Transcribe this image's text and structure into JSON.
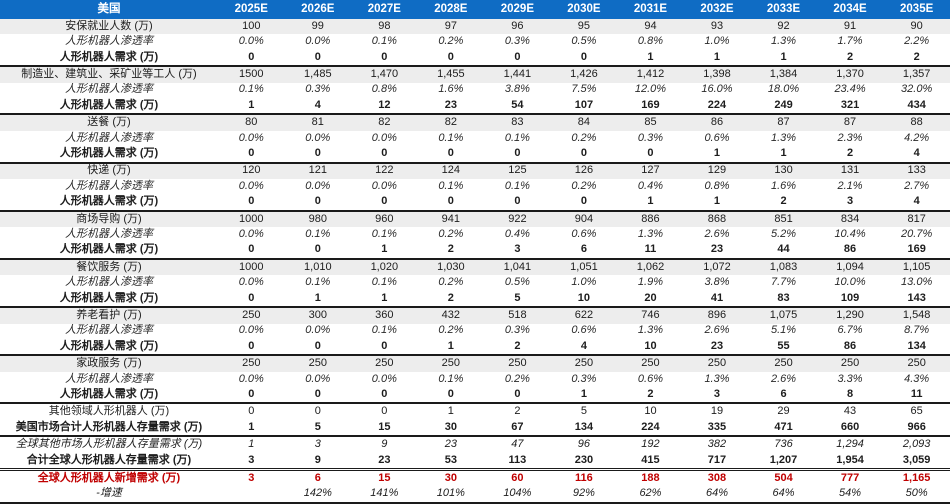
{
  "colors": {
    "header_bg": "#0F6CC4",
    "header_text": "#FFFFFF",
    "row_stripe": "#EDEDED",
    "highlight_red": "#C00000",
    "border": "#1A1A1A"
  },
  "chart_data": {
    "type": "table",
    "title": "美国",
    "corner_label": "美国",
    "columns": [
      "2025E",
      "2026E",
      "2027E",
      "2028E",
      "2029E",
      "2030E",
      "2031E",
      "2032E",
      "2033E",
      "2034E",
      "2035E"
    ],
    "rows": [
      {
        "label": "安保就业人数 (万)",
        "style": "category",
        "border": "none",
        "values": [
          "100",
          "99",
          "98",
          "97",
          "96",
          "95",
          "94",
          "93",
          "92",
          "91",
          "90"
        ]
      },
      {
        "label": "人形机器人渗透率",
        "style": "penetration",
        "border": "none",
        "values": [
          "0.0%",
          "0.0%",
          "0.1%",
          "0.2%",
          "0.3%",
          "0.5%",
          "0.8%",
          "1.0%",
          "1.3%",
          "1.7%",
          "2.2%"
        ]
      },
      {
        "label": "人形机器人需求 (万)",
        "style": "demand",
        "border": "none",
        "values": [
          "0",
          "0",
          "0",
          "0",
          "0",
          "0",
          "1",
          "1",
          "1",
          "2",
          "2"
        ]
      },
      {
        "label": "制造业、建筑业、采矿业等工人 (万)",
        "style": "category",
        "border": "solid",
        "values": [
          "1500",
          "1,485",
          "1,470",
          "1,455",
          "1,441",
          "1,426",
          "1,412",
          "1,398",
          "1,384",
          "1,370",
          "1,357"
        ]
      },
      {
        "label": "人形机器人渗透率",
        "style": "penetration",
        "border": "none",
        "values": [
          "0.1%",
          "0.3%",
          "0.8%",
          "1.6%",
          "3.8%",
          "7.5%",
          "12.0%",
          "16.0%",
          "18.0%",
          "23.4%",
          "32.0%"
        ]
      },
      {
        "label": "人形机器人需求 (万)",
        "style": "demand",
        "border": "none",
        "values": [
          "1",
          "4",
          "12",
          "23",
          "54",
          "107",
          "169",
          "224",
          "249",
          "321",
          "434"
        ]
      },
      {
        "label": "送餐 (万)",
        "style": "category",
        "border": "solid",
        "values": [
          "80",
          "81",
          "82",
          "82",
          "83",
          "84",
          "85",
          "86",
          "87",
          "87",
          "88"
        ]
      },
      {
        "label": "人形机器人渗透率",
        "style": "penetration",
        "border": "none",
        "values": [
          "0.0%",
          "0.0%",
          "0.0%",
          "0.1%",
          "0.1%",
          "0.2%",
          "0.3%",
          "0.6%",
          "1.3%",
          "2.3%",
          "4.2%"
        ]
      },
      {
        "label": "人形机器人需求 (万)",
        "style": "demand",
        "border": "none",
        "values": [
          "0",
          "0",
          "0",
          "0",
          "0",
          "0",
          "0",
          "1",
          "1",
          "2",
          "4"
        ]
      },
      {
        "label": "快递 (万)",
        "style": "category",
        "border": "solid",
        "values": [
          "120",
          "121",
          "122",
          "124",
          "125",
          "126",
          "127",
          "129",
          "130",
          "131",
          "133"
        ]
      },
      {
        "label": "人形机器人渗透率",
        "style": "penetration",
        "border": "none",
        "values": [
          "0.0%",
          "0.0%",
          "0.0%",
          "0.1%",
          "0.1%",
          "0.2%",
          "0.4%",
          "0.8%",
          "1.6%",
          "2.1%",
          "2.7%"
        ]
      },
      {
        "label": "人形机器人需求 (万)",
        "style": "demand",
        "border": "none",
        "values": [
          "0",
          "0",
          "0",
          "0",
          "0",
          "0",
          "1",
          "1",
          "2",
          "3",
          "4"
        ]
      },
      {
        "label": "商场导购 (万)",
        "style": "category",
        "border": "solid",
        "values": [
          "1000",
          "980",
          "960",
          "941",
          "922",
          "904",
          "886",
          "868",
          "851",
          "834",
          "817"
        ]
      },
      {
        "label": "人形机器人渗透率",
        "style": "penetration",
        "border": "none",
        "values": [
          "0.0%",
          "0.1%",
          "0.1%",
          "0.2%",
          "0.4%",
          "0.6%",
          "1.3%",
          "2.6%",
          "5.2%",
          "10.4%",
          "20.7%"
        ]
      },
      {
        "label": "人形机器人需求 (万)",
        "style": "demand",
        "border": "none",
        "values": [
          "0",
          "0",
          "1",
          "2",
          "3",
          "6",
          "11",
          "23",
          "44",
          "86",
          "169"
        ]
      },
      {
        "label": "餐饮服务 (万)",
        "style": "category",
        "border": "solid",
        "values": [
          "1000",
          "1,010",
          "1,020",
          "1,030",
          "1,041",
          "1,051",
          "1,062",
          "1,072",
          "1,083",
          "1,094",
          "1,105"
        ]
      },
      {
        "label": "人形机器人渗透率",
        "style": "penetration",
        "border": "none",
        "values": [
          "0.0%",
          "0.1%",
          "0.1%",
          "0.2%",
          "0.5%",
          "1.0%",
          "1.9%",
          "3.8%",
          "7.7%",
          "10.0%",
          "13.0%"
        ]
      },
      {
        "label": "人形机器人需求 (万)",
        "style": "demand",
        "border": "none",
        "values": [
          "0",
          "1",
          "1",
          "2",
          "5",
          "10",
          "20",
          "41",
          "83",
          "109",
          "143"
        ]
      },
      {
        "label": "养老看护 (万)",
        "style": "category",
        "border": "solid",
        "values": [
          "250",
          "300",
          "360",
          "432",
          "518",
          "622",
          "746",
          "896",
          "1,075",
          "1,290",
          "1,548"
        ]
      },
      {
        "label": "人形机器人渗透率",
        "style": "penetration",
        "border": "none",
        "values": [
          "0.0%",
          "0.0%",
          "0.1%",
          "0.2%",
          "0.3%",
          "0.6%",
          "1.3%",
          "2.6%",
          "5.1%",
          "6.7%",
          "8.7%"
        ]
      },
      {
        "label": "人形机器人需求 (万)",
        "style": "demand",
        "border": "none",
        "values": [
          "0",
          "0",
          "0",
          "1",
          "2",
          "4",
          "10",
          "23",
          "55",
          "86",
          "134"
        ]
      },
      {
        "label": "家政服务 (万)",
        "style": "category",
        "border": "solid",
        "values": [
          "250",
          "250",
          "250",
          "250",
          "250",
          "250",
          "250",
          "250",
          "250",
          "250",
          "250"
        ]
      },
      {
        "label": "人形机器人渗透率",
        "style": "penetration",
        "border": "none",
        "values": [
          "0.0%",
          "0.0%",
          "0.0%",
          "0.1%",
          "0.2%",
          "0.3%",
          "0.6%",
          "1.3%",
          "2.6%",
          "3.3%",
          "4.3%"
        ]
      },
      {
        "label": "人形机器人需求 (万)",
        "style": "demand",
        "border": "none",
        "values": [
          "0",
          "0",
          "0",
          "0",
          "0",
          "1",
          "2",
          "3",
          "6",
          "8",
          "11"
        ]
      },
      {
        "label": "其他领域人形机器人 (万)",
        "style": "plain",
        "border": "solid",
        "values": [
          "0",
          "0",
          "0",
          "1",
          "2",
          "5",
          "10",
          "19",
          "29",
          "43",
          "65"
        ]
      },
      {
        "label": "美国市场合计人形机器人存量需求 (万)",
        "style": "bolded",
        "border": "none",
        "values": [
          "1",
          "5",
          "15",
          "30",
          "67",
          "134",
          "224",
          "335",
          "471",
          "660",
          "966"
        ]
      },
      {
        "label": "全球其他市场人形机器人存量需求 (万)",
        "style": "italic",
        "border": "solid",
        "values": [
          "1",
          "3",
          "9",
          "23",
          "47",
          "96",
          "192",
          "382",
          "736",
          "1,294",
          "2,093"
        ]
      },
      {
        "label": "合计全球人形机器人存量需求 (万)",
        "style": "bolded",
        "border": "none",
        "values": [
          "3",
          "9",
          "23",
          "53",
          "113",
          "230",
          "415",
          "717",
          "1,207",
          "1,954",
          "3,059"
        ]
      },
      {
        "label": "全球人形机器人新增需求 (万)",
        "style": "red",
        "border": "double",
        "values": [
          "3",
          "6",
          "15",
          "30",
          "60",
          "116",
          "188",
          "308",
          "504",
          "777",
          "1,165"
        ]
      },
      {
        "label": "-增速",
        "style": "italic",
        "border": "none",
        "values": [
          "",
          "142%",
          "141%",
          "101%",
          "104%",
          "92%",
          "62%",
          "64%",
          "64%",
          "54%",
          "50%"
        ]
      }
    ]
  }
}
